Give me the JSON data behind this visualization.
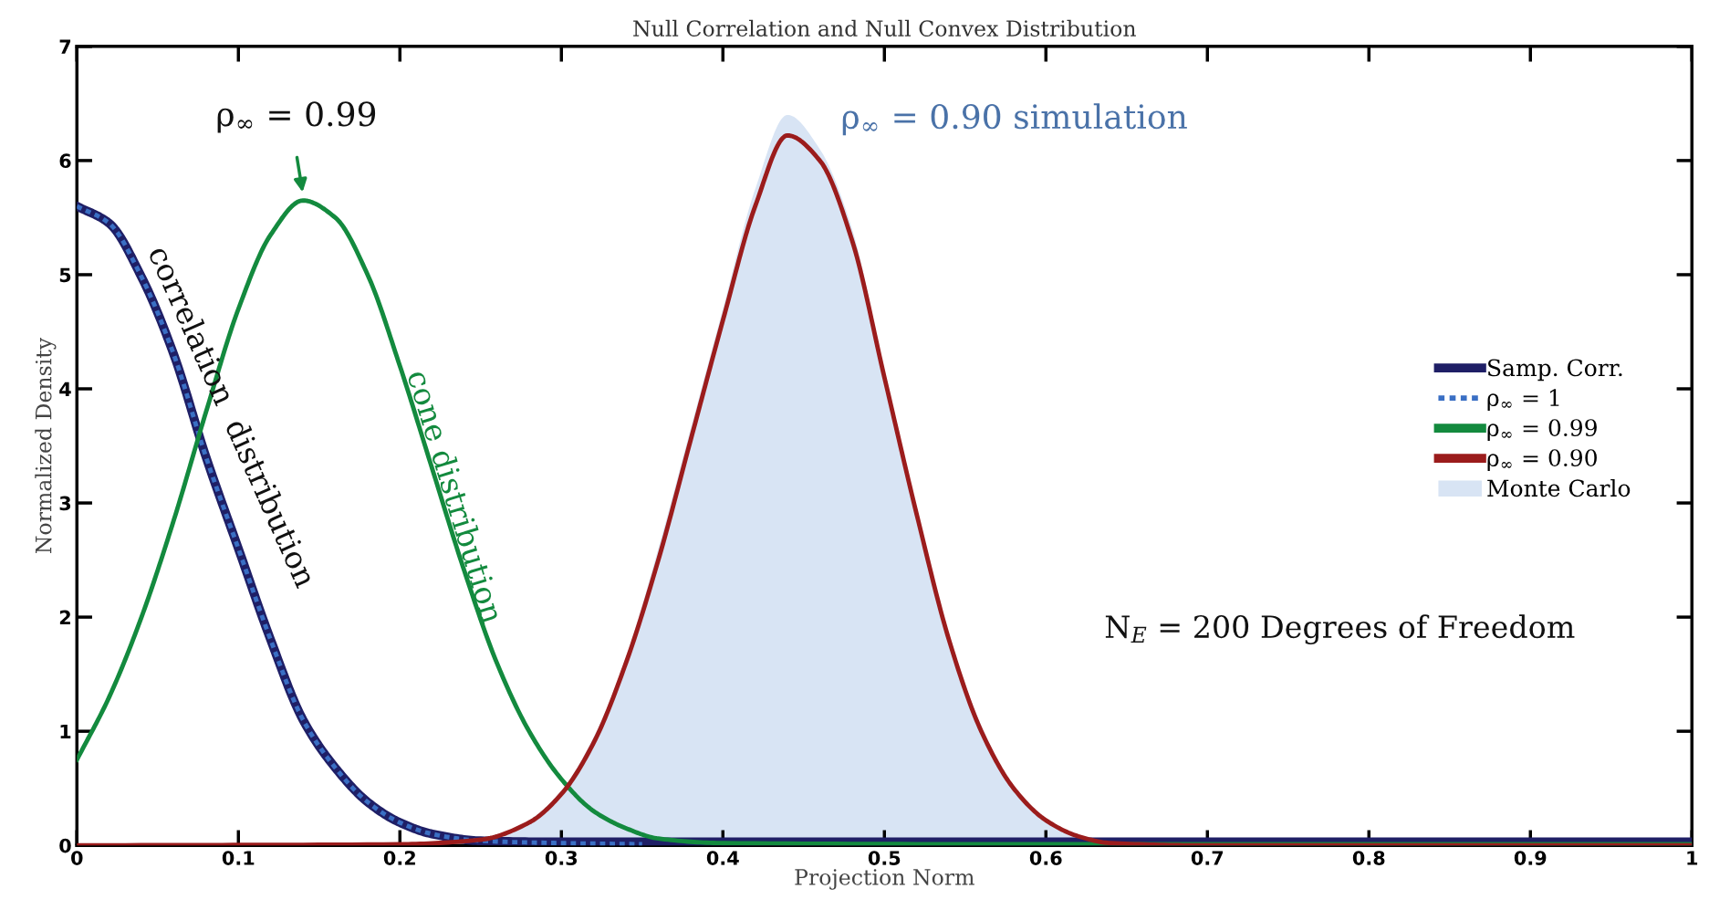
{
  "chart_data": {
    "type": "line",
    "title": "Null Correlation and Null Convex Distribution",
    "xlabel": "Projection Norm",
    "ylabel": "Normalized Density",
    "xlim": [
      0,
      1
    ],
    "ylim": [
      0,
      7
    ],
    "xticks": [
      0,
      0.1,
      0.2,
      0.3,
      0.4,
      0.5,
      0.6,
      0.7,
      0.8,
      0.9,
      1
    ],
    "yticks": [
      0,
      1,
      2,
      3,
      4,
      5,
      6,
      7
    ],
    "grid": false,
    "legend": "right",
    "series": [
      {
        "name": "Samp. Corr.",
        "color": "#1f1f66",
        "line_style": "solid",
        "x": [
          0,
          0.02,
          0.04,
          0.06,
          0.08,
          0.1,
          0.12,
          0.14,
          0.16,
          0.18,
          0.2,
          0.22,
          0.25,
          0.3,
          0.4,
          0.6,
          0.8,
          1.0
        ],
        "values": [
          5.6,
          5.45,
          4.98,
          4.3,
          3.4,
          2.6,
          1.8,
          1.1,
          0.68,
          0.38,
          0.2,
          0.1,
          0.04,
          0.03,
          0.03,
          0.03,
          0.03,
          0.03
        ]
      },
      {
        "name": "ρ$_{∞}$ = 1",
        "color": "#3a6fc4",
        "line_style": "dotted",
        "x": [
          0,
          0.02,
          0.04,
          0.06,
          0.08,
          0.1,
          0.12,
          0.14,
          0.16,
          0.18,
          0.2,
          0.22,
          0.25,
          0.3,
          0.35
        ],
        "values": [
          5.6,
          5.45,
          4.98,
          4.3,
          3.4,
          2.6,
          1.8,
          1.1,
          0.68,
          0.38,
          0.2,
          0.1,
          0.04,
          0.02,
          0.01
        ]
      },
      {
        "name": "ρ$_{∞}$ = 0.99",
        "color": "#138a3e",
        "line_style": "solid",
        "x": [
          0,
          0.02,
          0.04,
          0.06,
          0.08,
          0.1,
          0.12,
          0.14,
          0.16,
          0.18,
          0.2,
          0.22,
          0.24,
          0.26,
          0.28,
          0.3,
          0.32,
          0.34,
          0.36,
          0.4,
          0.6,
          1.0
        ],
        "values": [
          0.75,
          1.3,
          2.0,
          2.85,
          3.8,
          4.7,
          5.35,
          5.65,
          5.5,
          5.0,
          4.2,
          3.3,
          2.4,
          1.6,
          1.0,
          0.58,
          0.3,
          0.15,
          0.06,
          0.02,
          0.01,
          0.01
        ]
      },
      {
        "name": "ρ$_{∞}$ = 0.90",
        "color": "#9b1c1c",
        "line_style": "solid",
        "x": [
          0,
          0.2,
          0.25,
          0.28,
          0.3,
          0.32,
          0.34,
          0.36,
          0.38,
          0.4,
          0.42,
          0.44,
          0.46,
          0.48,
          0.5,
          0.52,
          0.54,
          0.56,
          0.58,
          0.6,
          0.62,
          0.64,
          0.7,
          1.0
        ],
        "values": [
          0,
          0.01,
          0.05,
          0.2,
          0.45,
          0.9,
          1.6,
          2.5,
          3.55,
          4.6,
          5.6,
          6.22,
          6.0,
          5.3,
          4.1,
          2.9,
          1.8,
          1.0,
          0.5,
          0.22,
          0.08,
          0.02,
          0,
          0
        ]
      },
      {
        "name": "Monte Carlo",
        "type": "area",
        "color": "#d8e4f4",
        "x": [
          0.24,
          0.26,
          0.28,
          0.3,
          0.32,
          0.34,
          0.36,
          0.38,
          0.4,
          0.42,
          0.44,
          0.46,
          0.48,
          0.5,
          0.52,
          0.54,
          0.56,
          0.58,
          0.6,
          0.62,
          0.64,
          0.66
        ],
        "values": [
          0.02,
          0.08,
          0.22,
          0.48,
          0.95,
          1.65,
          2.6,
          3.65,
          4.7,
          5.75,
          6.4,
          6.1,
          5.4,
          4.15,
          2.95,
          1.85,
          1.05,
          0.52,
          0.24,
          0.09,
          0.03,
          0.0
        ]
      }
    ],
    "annotations": [
      {
        "text": "ρ$_{∞}$ = 0.99",
        "x": 0.14,
        "y": 5.65
      },
      "ρ$_{∞}$ = 0.90 simulation",
      "correlation  distribution",
      "cone distribution",
      "N$_{E}$ = 200 Degrees of Freedom"
    ]
  }
}
